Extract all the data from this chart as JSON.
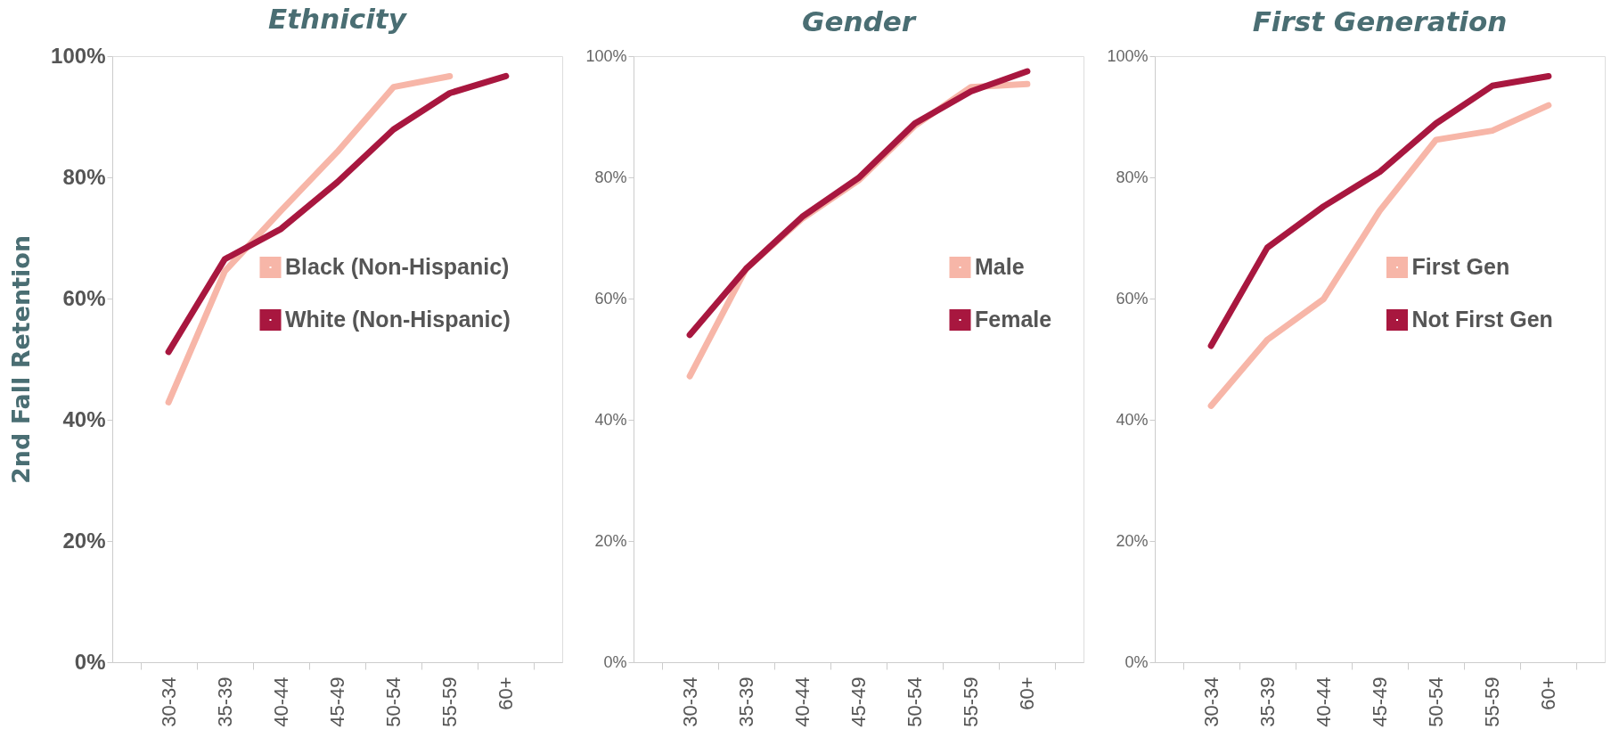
{
  "chart_data": [
    {
      "type": "line",
      "title": "Ethnicity",
      "ylabel": "2nd Fall Retention",
      "categories": [
        "30-34",
        "35-39",
        "40-44",
        "45-49",
        "50-54",
        "55-59",
        "60+"
      ],
      "ylim": [
        0,
        100
      ],
      "yticks": [
        {
          "value": 0,
          "label": "0%"
        },
        {
          "value": 20,
          "label": "20%"
        },
        {
          "value": 40,
          "label": "40%"
        },
        {
          "value": 60,
          "label": "60%"
        },
        {
          "value": 80,
          "label": "80%"
        },
        {
          "value": 100,
          "label": "100%"
        }
      ],
      "legend": "right",
      "grid": false,
      "series": [
        {
          "name": "Black (Non-Hispanic)",
          "color": "#f7b6a8",
          "values": [
            42.9,
            64.5,
            74.5,
            84.2,
            94.9,
            96.7,
            null
          ]
        },
        {
          "name": "White (Non-Hispanic)",
          "color": "#a8173f",
          "values": [
            51.2,
            66.5,
            71.5,
            79.2,
            87.9,
            93.9,
            96.7
          ]
        }
      ]
    },
    {
      "type": "line",
      "title": "Gender",
      "categories": [
        "30-34",
        "35-39",
        "40-44",
        "45-49",
        "50-54",
        "55-59",
        "60+"
      ],
      "ylim": [
        0,
        100
      ],
      "yticks": [
        {
          "value": 0,
          "label": "0%"
        },
        {
          "value": 20,
          "label": "20%"
        },
        {
          "value": 40,
          "label": "40%"
        },
        {
          "value": 60,
          "label": "60%"
        },
        {
          "value": 80,
          "label": "80%"
        },
        {
          "value": 100,
          "label": "100%"
        }
      ],
      "legend": "right",
      "grid": false,
      "series": [
        {
          "name": "Male",
          "color": "#f7b6a8",
          "values": [
            47.2,
            64.9,
            73.2,
            79.5,
            88.5,
            94.9,
            95.4
          ]
        },
        {
          "name": "Female",
          "color": "#a8173f",
          "values": [
            54.0,
            64.9,
            73.5,
            79.9,
            88.9,
            94.2,
            97.5
          ]
        }
      ]
    },
    {
      "type": "line",
      "title": "First Generation",
      "categories": [
        "30-34",
        "35-39",
        "40-44",
        "45-49",
        "50-54",
        "55-59",
        "60+"
      ],
      "ylim": [
        0,
        100
      ],
      "yticks": [
        {
          "value": 0,
          "label": "0%"
        },
        {
          "value": 20,
          "label": "20%"
        },
        {
          "value": 40,
          "label": "40%"
        },
        {
          "value": 60,
          "label": "60%"
        },
        {
          "value": 80,
          "label": "80%"
        },
        {
          "value": 100,
          "label": "100%"
        }
      ],
      "legend": "right",
      "grid": false,
      "series": [
        {
          "name": "First Gen",
          "color": "#f7b6a8",
          "values": [
            42.3,
            53.2,
            59.9,
            74.5,
            86.2,
            87.7,
            91.9
          ]
        },
        {
          "name": "Not First Gen",
          "color": "#a8173f",
          "values": [
            52.2,
            68.4,
            75.2,
            80.9,
            88.9,
            95.1,
            96.7
          ]
        }
      ]
    }
  ]
}
